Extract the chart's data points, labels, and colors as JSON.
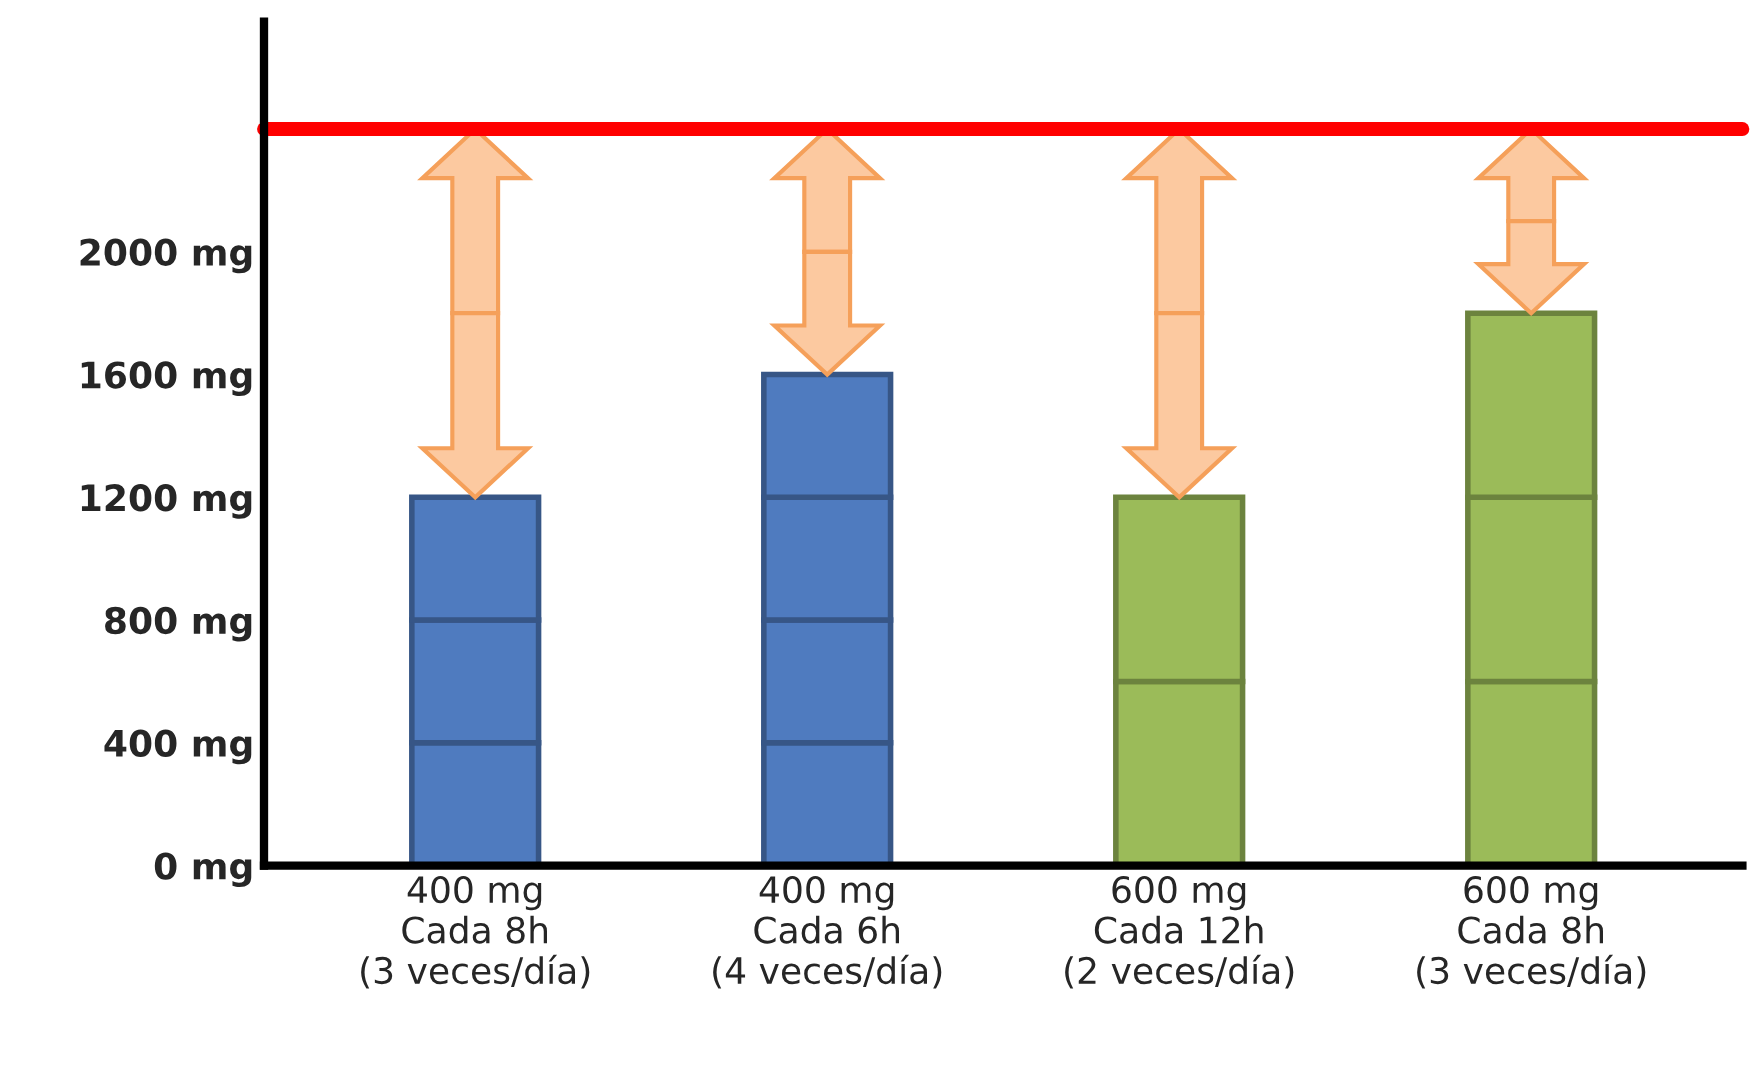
{
  "chart_data": {
    "type": "bar",
    "stacked": true,
    "categories": [
      "400 mg\nCada 8h\n(3 veces/día)",
      "400 mg\nCada 6h\n(4 veces/día)",
      "600 mg\nCada 12h\n(2 veces/día)",
      "600 mg\nCada 8h\n(3 veces/día)"
    ],
    "series": [
      {
        "colors": [
          "#4f7bbf",
          "#4f7bbf",
          "#9bbb59",
          "#9bbb59"
        ],
        "values": [
          400,
          400,
          600,
          600
        ]
      },
      {
        "colors": [
          "#4f7bbf",
          "#4f7bbf",
          "#9bbb59",
          "#9bbb59"
        ],
        "values": [
          400,
          400,
          600,
          600
        ]
      },
      {
        "colors": [
          "#4f7bbf",
          "#4f7bbf",
          "#9bbb59",
          "#9bbb59"
        ],
        "values": [
          400,
          400,
          null,
          600
        ]
      },
      {
        "colors": [
          "#4f7bbf",
          "#4f7bbf",
          "#9bbb59",
          "#9bbb59"
        ],
        "values": [
          null,
          400,
          null,
          null
        ]
      }
    ],
    "ylim": [
      0,
      2750
    ],
    "yticks": [
      {
        "value": 0,
        "label": "0 mg"
      },
      {
        "value": 400,
        "label": "400 mg"
      },
      {
        "value": 800,
        "label": "800 mg"
      },
      {
        "value": 1200,
        "label": "1200 mg"
      },
      {
        "value": 1600,
        "label": "1600 mg"
      },
      {
        "value": 2000,
        "label": "2000 mg"
      }
    ],
    "ref_lines": [
      {
        "axis": "y",
        "value": 2400,
        "color": "#ff0000"
      }
    ],
    "grid": false,
    "legend": false
  }
}
